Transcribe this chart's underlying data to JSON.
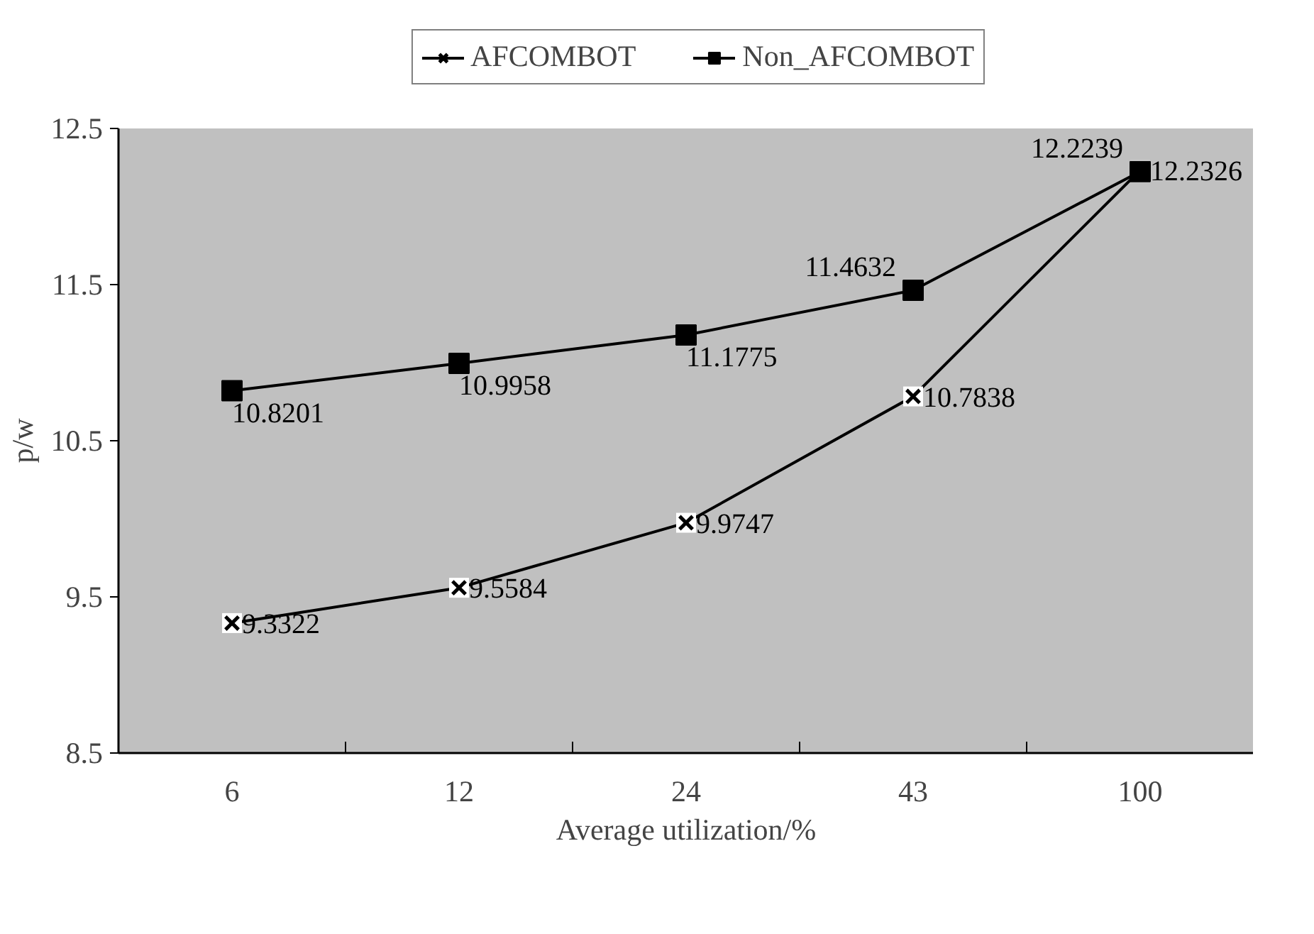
{
  "chart_data": {
    "type": "line",
    "xlabel": "Average utilization/%",
    "ylabel": "p/w",
    "categories": [
      "6",
      "12",
      "24",
      "43",
      "100"
    ],
    "ylim": [
      8.5,
      12.5
    ],
    "yticks": [
      8.5,
      9.5,
      10.5,
      11.5,
      12.5
    ],
    "grid": false,
    "legend": "top",
    "data_labels": true,
    "series": [
      {
        "name": "AFCOMBOT",
        "color": "#000000",
        "marker": "cross",
        "values": [
          9.3322,
          9.5584,
          9.9747,
          10.7838,
          12.2326
        ]
      },
      {
        "name": "Non_AFCOMBOT",
        "color": "#000000",
        "marker": "square",
        "values": [
          10.8201,
          10.9958,
          11.1775,
          11.4632,
          12.2239
        ]
      }
    ]
  }
}
